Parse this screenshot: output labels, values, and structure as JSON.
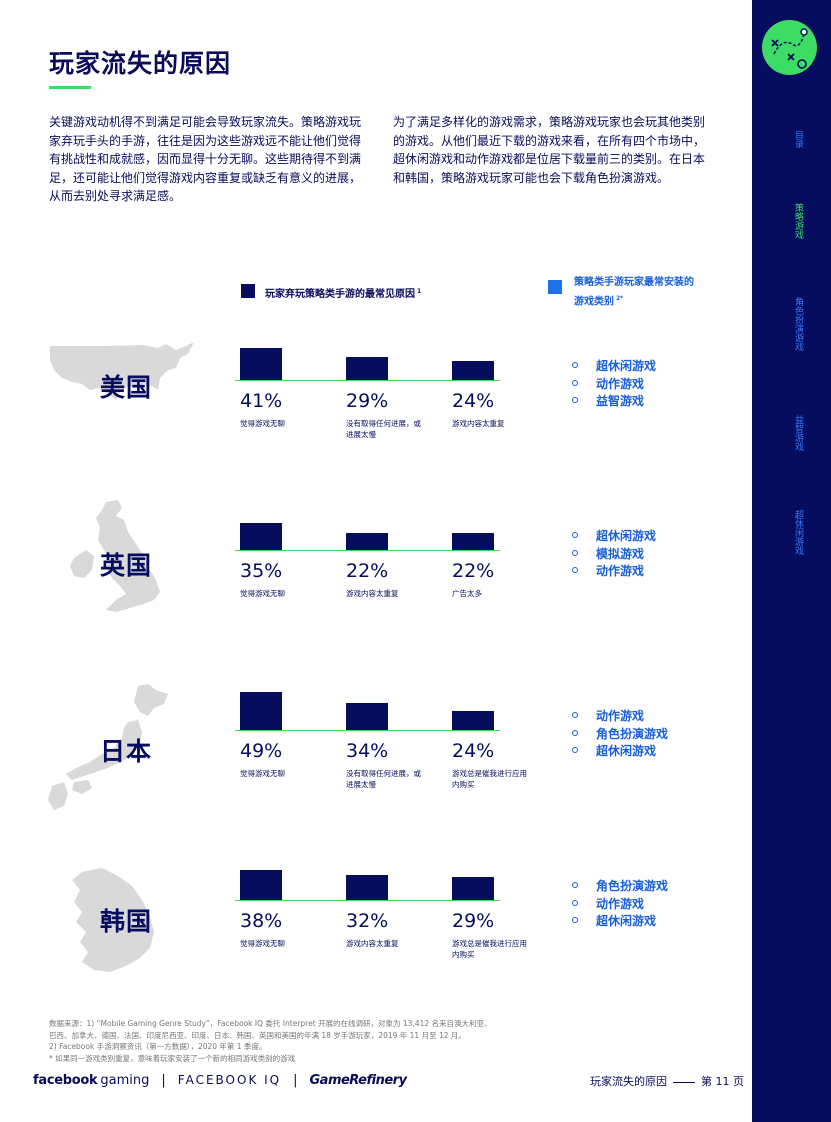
{
  "title": "玩家流失的原因",
  "intro": {
    "left": "关键游戏动机得不到满足可能会导致玩家流失。策略游戏玩家弃玩手头的手游，往往是因为这些游戏远不能让他们觉得有挑战性和成就感，因而显得十分无聊。这些期待得不到满足，还可能让他们觉得游戏内容重复或缺乏有意义的进展，从而去别处寻求满足感。",
    "right": "为了满足多样化的游戏需求，策略游戏玩家也会玩其他类别的游戏。从他们最近下载的游戏来看，在所有四个市场中，超休闲游戏和动作游戏都是位居下载量前三的类别。在日本和韩国，策略游戏玩家可能也会下载角色扮演游戏。"
  },
  "legend": {
    "reasons_label": "玩家弃玩策略类手游的最常见原因",
    "reasons_note": "1",
    "genres_label_line1": "策略类手游玩家最常安装的",
    "genres_label_line2": "游戏类别",
    "genres_note": "2*"
  },
  "colors": {
    "navy": "#060d5e",
    "green": "#3ddc64",
    "blue": "#1a73e8"
  },
  "chart_data": [
    {
      "type": "bar",
      "country": "美国",
      "values": [
        41,
        29,
        24
      ],
      "labels": [
        "41%",
        "29%",
        "24%"
      ],
      "categories": [
        "觉得游戏无聊",
        "没有取得任何进展，或进展太慢",
        "游戏内容太重复"
      ],
      "genres": [
        "超休闲游戏",
        "动作游戏",
        "益智游戏"
      ]
    },
    {
      "type": "bar",
      "country": "英国",
      "values": [
        35,
        22,
        22
      ],
      "labels": [
        "35%",
        "22%",
        "22%"
      ],
      "categories": [
        "觉得游戏无聊",
        "游戏内容太重复",
        "广告太多"
      ],
      "genres": [
        "超休闲游戏",
        "模拟游戏",
        "动作游戏"
      ]
    },
    {
      "type": "bar",
      "country": "日本",
      "values": [
        49,
        34,
        24
      ],
      "labels": [
        "49%",
        "34%",
        "24%"
      ],
      "categories": [
        "觉得游戏无聊",
        "没有取得任何进展，或进展太慢",
        "游戏总是催我进行应用内购买"
      ],
      "genres": [
        "动作游戏",
        "角色扮演游戏",
        "超休闲游戏"
      ]
    },
    {
      "type": "bar",
      "country": "韩国",
      "values": [
        38,
        32,
        29
      ],
      "labels": [
        "38%",
        "32%",
        "29%"
      ],
      "categories": [
        "觉得游戏无聊",
        "游戏内容太重复",
        "游戏总是催我进行应用内购买"
      ],
      "genres": [
        "角色扮演游戏",
        "动作游戏",
        "超休闲游戏"
      ]
    }
  ],
  "footnotes": [
    "数据来源：1) “Mobile Gaming Genre Study”，Facebook IQ 委托 Interpret 开展的在线调研，对象为 13,412 名来自澳大利亚、",
    "巴西、加拿大、德国、法国、印度尼西亚、印度、日本、韩国、英国和美国的年满 18 岁手游玩家，2019 年 11 月至 12 月。",
    "2) Facebook 手游洞察资讯（第一方数据），2020 年第 1 季度。",
    "* 如果同一游戏类别重复，意味着玩家安装了一个新的相同游戏类别的游戏"
  ],
  "brand": {
    "facebook": "facebook",
    "gaming": "gaming",
    "fbiq": "FACEBOOK IQ",
    "gamerefinery": "GameRefinery",
    "separator": "|"
  },
  "footer": {
    "section": "玩家流失的原因",
    "page": "第 11 页"
  },
  "sidebar": {
    "items": [
      "目录",
      "策略游戏",
      "角色扮演游戏",
      "益智游戏",
      "超休闲游戏"
    ],
    "logo_icon": "strategy-play-icon"
  }
}
